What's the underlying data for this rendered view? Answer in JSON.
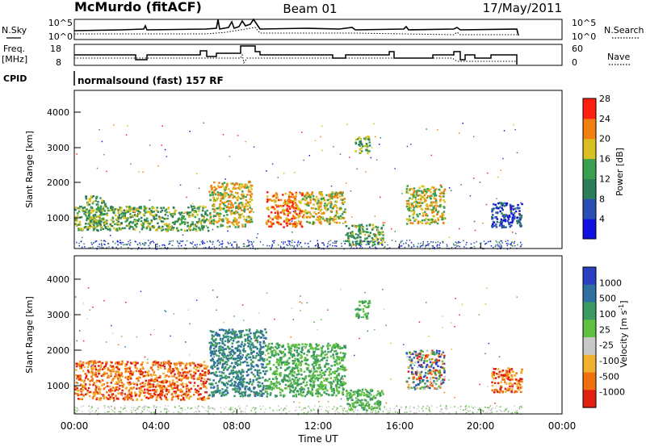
{
  "header": {
    "station": "McMurdo (fitACF)",
    "beam": "Beam 01",
    "date": "17/May/2011"
  },
  "params_panel": {
    "nsky_label": "N.Sky",
    "nsky_ticks": [
      "10^5",
      "10^0"
    ],
    "nsearch_label": "N.Search",
    "nsearch_ticks": [
      "10^5",
      "10^0"
    ],
    "freq_label": "Freq.",
    "freq_unit": "[MHz]",
    "freq_ticks": [
      "18",
      "8"
    ],
    "nave_label": "Nave",
    "nave_ticks": [
      "60",
      "0"
    ],
    "cpid_label": "CPID",
    "cpid_text": "normalsound (fast) 157 RF"
  },
  "chart_data": [
    {
      "type": "heatmap",
      "title": "",
      "xlabel": "Time UT",
      "ylabel": "Slant Range [km]",
      "xticks": [
        "00:00",
        "04:00",
        "08:00",
        "12:00",
        "16:00",
        "20:00",
        "00:00"
      ],
      "yticks": [
        "1000",
        "2000",
        "3000",
        "4000"
      ],
      "xlim_hours": [
        0,
        24
      ],
      "ylim_km": [
        180,
        4650
      ],
      "data_end_hour": 22,
      "colorbar": {
        "label": "Power [dB]",
        "ticks": [
          "4",
          "8",
          "12",
          "16",
          "20",
          "24",
          "28"
        ],
        "range": [
          0,
          30
        ],
        "colors": [
          "#1010e0",
          "#2a4fb4",
          "#2e7d5a",
          "#3aa050",
          "#d8c020",
          "#f28010",
          "#ff2010"
        ]
      },
      "features": [
        {
          "t0": 0.0,
          "t1": 6.6,
          "r0": 700,
          "r1": 1400,
          "level": "low-mid"
        },
        {
          "t0": 0.5,
          "t1": 1.5,
          "r0": 800,
          "r1": 1700,
          "level": "mid"
        },
        {
          "t0": 6.6,
          "t1": 8.7,
          "r0": 800,
          "r1": 2100,
          "level": "high"
        },
        {
          "t0": 9.4,
          "t1": 11.2,
          "r0": 800,
          "r1": 1800,
          "level": "very high"
        },
        {
          "t0": 11.2,
          "t1": 13.3,
          "r0": 900,
          "r1": 1800,
          "level": "mid-high"
        },
        {
          "t0": 13.3,
          "t1": 15.2,
          "r0": 300,
          "r1": 900,
          "level": "mid"
        },
        {
          "t0": 13.8,
          "t1": 14.5,
          "r0": 2900,
          "r1": 3400,
          "level": "mid"
        },
        {
          "t0": 16.3,
          "t1": 18.2,
          "r0": 900,
          "r1": 2000,
          "level": "high"
        },
        {
          "t0": 20.5,
          "t1": 22.0,
          "r0": 800,
          "r1": 1500,
          "level": "low"
        }
      ]
    },
    {
      "type": "heatmap",
      "title": "",
      "xlabel": "Time UT",
      "ylabel": "Slant Range [km]",
      "xticks": [
        "00:00",
        "04:00",
        "08:00",
        "12:00",
        "16:00",
        "20:00",
        "00:00"
      ],
      "yticks": [
        "1000",
        "2000",
        "3000",
        "4000"
      ],
      "xlim_hours": [
        0,
        24
      ],
      "ylim_km": [
        180,
        4650
      ],
      "data_end_hour": 22,
      "colorbar": {
        "label": "Velocity [m s^-1]",
        "ticks": [
          "1000",
          "500",
          "100",
          "25",
          "-25",
          "-100",
          "-500",
          "-1000"
        ],
        "colors": [
          "#2a40c0",
          "#3070a0",
          "#3a9a60",
          "#60c040",
          "#c8c8c8",
          "#f0b030",
          "#f07010",
          "#e02010"
        ]
      },
      "features": [
        {
          "t0": 0.0,
          "t1": 6.6,
          "r0": 600,
          "r1": 1700,
          "velocity": "-100 to -500"
        },
        {
          "t0": 6.6,
          "t1": 9.4,
          "r0": 700,
          "r1": 2600,
          "velocity": "100 to 1000"
        },
        {
          "t0": 9.4,
          "t1": 13.3,
          "r0": 700,
          "r1": 2200,
          "velocity": "100 to 500"
        },
        {
          "t0": 13.3,
          "t1": 15.2,
          "r0": 300,
          "r1": 900,
          "velocity": "100"
        },
        {
          "t0": 13.8,
          "t1": 14.5,
          "r0": 2900,
          "r1": 3400,
          "velocity": "500"
        },
        {
          "t0": 16.3,
          "t1": 18.2,
          "r0": 900,
          "r1": 2000,
          "velocity": "mixed"
        },
        {
          "t0": 20.5,
          "t1": 22.0,
          "r0": 800,
          "r1": 1500,
          "velocity": "-500"
        }
      ]
    }
  ]
}
